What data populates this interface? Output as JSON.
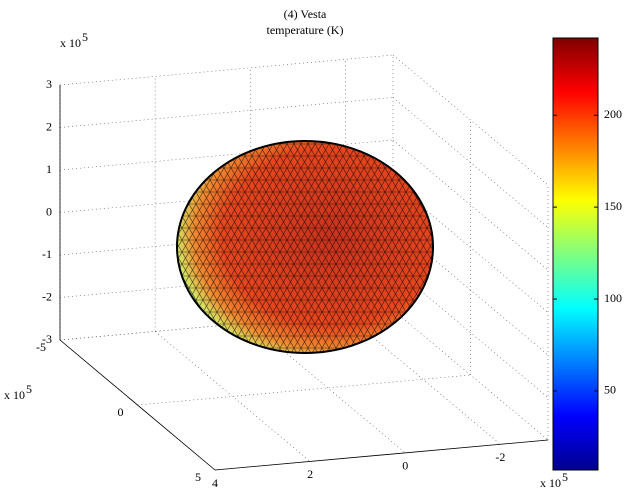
{
  "chart_data": {
    "type": "surface3d",
    "title": "(4) Vesta",
    "subtitle": "temperature (K)",
    "axis_multiplier": {
      "base": "x 10",
      "exponent": "5"
    },
    "xlim": [
      -3,
      4
    ],
    "xticks": [
      4,
      2,
      0,
      -2
    ],
    "ylim": [
      -5,
      5
    ],
    "yticks": [
      -5,
      0,
      5
    ],
    "zlim": [
      -3,
      3
    ],
    "zticks": [
      -3,
      -2,
      -1,
      0,
      1,
      2,
      3
    ],
    "colorbar": {
      "clim": [
        7,
        242
      ],
      "ticks": [
        50,
        100,
        150,
        200
      ],
      "colormap": "jet"
    },
    "grid": true
  }
}
